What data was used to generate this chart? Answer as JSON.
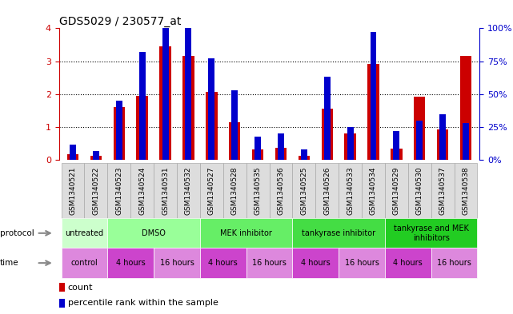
{
  "title": "GDS5029 / 230577_at",
  "samples": [
    "GSM1340521",
    "GSM1340522",
    "GSM1340523",
    "GSM1340524",
    "GSM1340531",
    "GSM1340532",
    "GSM1340527",
    "GSM1340528",
    "GSM1340535",
    "GSM1340536",
    "GSM1340525",
    "GSM1340526",
    "GSM1340533",
    "GSM1340534",
    "GSM1340529",
    "GSM1340530",
    "GSM1340537",
    "GSM1340538"
  ],
  "counts": [
    0.18,
    0.12,
    1.6,
    1.95,
    3.45,
    3.15,
    2.07,
    1.15,
    0.33,
    0.37,
    0.12,
    1.55,
    0.82,
    2.93,
    0.35,
    1.93,
    0.93,
    3.15
  ],
  "percentile_ranks": [
    12,
    7,
    45,
    82,
    110,
    105,
    77,
    53,
    18,
    20,
    8,
    63,
    25,
    97,
    22,
    30,
    35,
    28
  ],
  "ylim_left": [
    0,
    4
  ],
  "ylim_right": [
    0,
    100
  ],
  "yticks_left": [
    0,
    1,
    2,
    3,
    4
  ],
  "yticks_right": [
    0,
    25,
    50,
    75,
    100
  ],
  "bar_color_red": "#CC0000",
  "bar_color_blue": "#0000CC",
  "bar_width": 0.5,
  "protocol_groups": [
    {
      "label": "untreated",
      "start": 0,
      "end": 2,
      "color": "#ccffcc"
    },
    {
      "label": "DMSO",
      "start": 2,
      "end": 6,
      "color": "#99ff99"
    },
    {
      "label": "MEK inhibitor",
      "start": 6,
      "end": 10,
      "color": "#66ee66"
    },
    {
      "label": "tankyrase inhibitor",
      "start": 10,
      "end": 14,
      "color": "#44dd44"
    },
    {
      "label": "tankyrase and MEK\ninhibitors",
      "start": 14,
      "end": 18,
      "color": "#22cc22"
    }
  ],
  "time_groups": [
    {
      "label": "control",
      "start": 0,
      "end": 2,
      "color": "#dd88dd"
    },
    {
      "label": "4 hours",
      "start": 2,
      "end": 4,
      "color": "#cc44cc"
    },
    {
      "label": "16 hours",
      "start": 4,
      "end": 6,
      "color": "#dd88dd"
    },
    {
      "label": "4 hours",
      "start": 6,
      "end": 8,
      "color": "#cc44cc"
    },
    {
      "label": "16 hours",
      "start": 8,
      "end": 10,
      "color": "#dd88dd"
    },
    {
      "label": "4 hours",
      "start": 10,
      "end": 12,
      "color": "#cc44cc"
    },
    {
      "label": "16 hours",
      "start": 12,
      "end": 14,
      "color": "#dd88dd"
    },
    {
      "label": "4 hours",
      "start": 14,
      "end": 16,
      "color": "#cc44cc"
    },
    {
      "label": "16 hours",
      "start": 16,
      "end": 18,
      "color": "#dd88dd"
    }
  ],
  "bg_color": "#ffffff",
  "left_axis_color": "#CC0000",
  "right_axis_color": "#0000CC",
  "sample_bg_color": "#dddddd",
  "sample_border_color": "#aaaaaa"
}
